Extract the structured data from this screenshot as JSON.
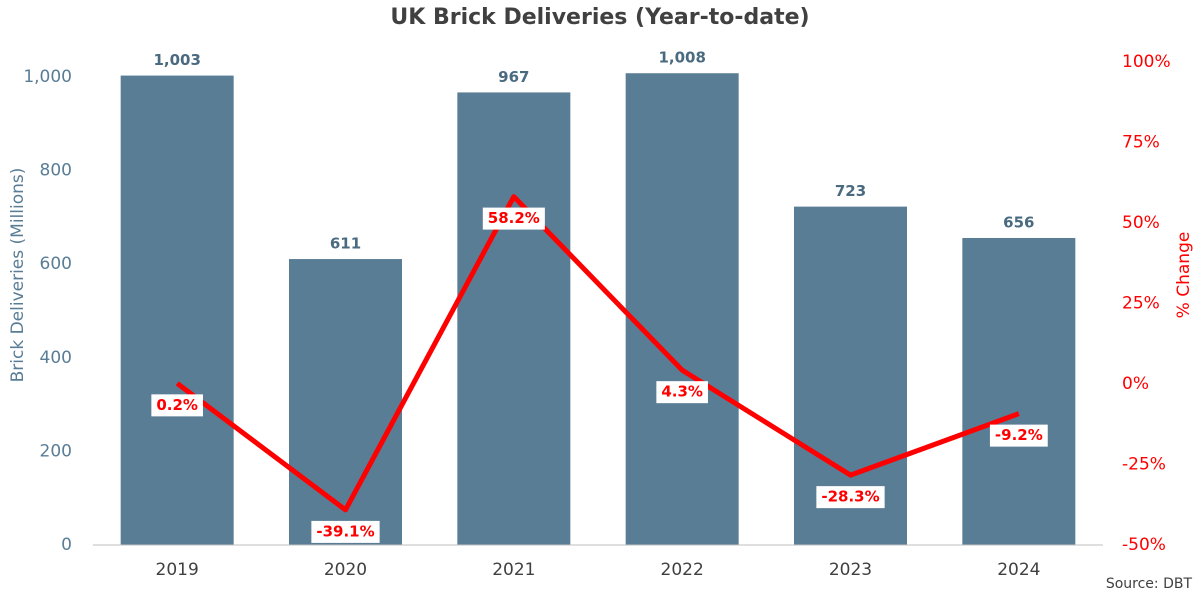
{
  "chart_data": {
    "type": "bar_line",
    "title": "UK Brick Deliveries  (Year-to-date)",
    "ylabel": "Brick Deliveries (Millions)",
    "y2label": "% Change",
    "source": "Source: DBT",
    "categories": [
      "2019",
      "2020",
      "2021",
      "2022",
      "2023",
      "2024"
    ],
    "series": [
      {
        "name": "Brick Deliveries",
        "type": "bar",
        "color": "#5a7d96",
        "values": [
          1003,
          611,
          967,
          1008,
          723,
          656
        ],
        "value_labels": [
          "1,003",
          "611",
          "967",
          "1,008",
          "723",
          "656"
        ]
      },
      {
        "name": "% Change",
        "type": "line",
        "axis": "y2",
        "color": "#ff0000",
        "values": [
          0.2,
          -39.1,
          58.2,
          4.3,
          -28.3,
          -9.2
        ],
        "value_labels": [
          "0.2%",
          "-39.1%",
          "58.2%",
          "4.3%",
          "-28.3%",
          "-9.2%"
        ]
      }
    ],
    "ylim": [
      0,
      1032
    ],
    "yticks": [
      0,
      200,
      400,
      600,
      800,
      {
        "value": 1000,
        "label": "1,000"
      }
    ],
    "y2lim": [
      -50,
      100
    ],
    "y2ticks": [
      {
        "value": 100,
        "label": "100%"
      },
      {
        "value": 75,
        "label": "75%"
      },
      {
        "value": 50,
        "label": "50%"
      },
      {
        "value": 25,
        "label": "25%"
      },
      {
        "value": 0,
        "label": "0%"
      },
      {
        "value": -25,
        "label": "-25%"
      },
      {
        "value": -50,
        "label": "-50%"
      }
    ]
  }
}
